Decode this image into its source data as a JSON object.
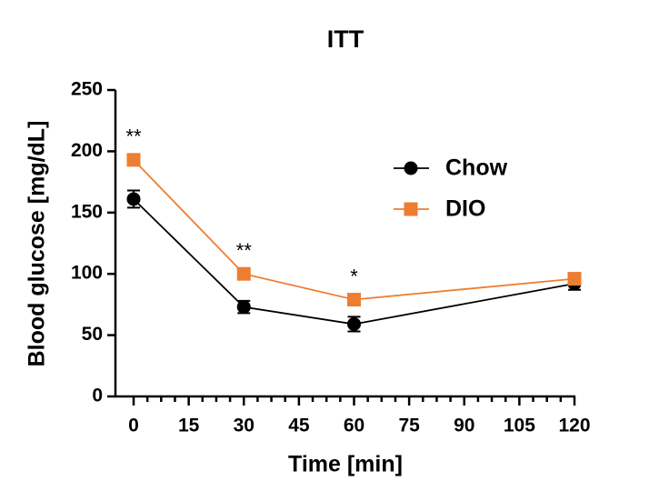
{
  "chart_data": {
    "type": "line",
    "title": "ITT",
    "xlabel": "Time [min]",
    "ylabel": "Blood glucose [mg/dL]",
    "x": [
      0,
      30,
      60,
      120
    ],
    "series": [
      {
        "name": "Chow",
        "color": "#000000",
        "marker": "circle",
        "values": [
          161,
          73,
          59,
          92
        ],
        "errors": [
          7,
          5,
          6,
          5
        ]
      },
      {
        "name": "DIO",
        "color": "#ed7d31",
        "marker": "square",
        "values": [
          193,
          100,
          79,
          96
        ],
        "errors": [
          3,
          3,
          3,
          3
        ]
      }
    ],
    "annotations": [
      {
        "x": 0,
        "text": "**"
      },
      {
        "x": 30,
        "text": "**"
      },
      {
        "x": 60,
        "text": "*"
      }
    ],
    "xlim": [
      0,
      120
    ],
    "xticks": [
      0,
      15,
      30,
      45,
      60,
      75,
      90,
      105,
      120
    ],
    "ylim": [
      0,
      250
    ],
    "yticks": [
      0,
      50,
      100,
      150,
      200,
      250
    ],
    "legend": "upper-right"
  }
}
